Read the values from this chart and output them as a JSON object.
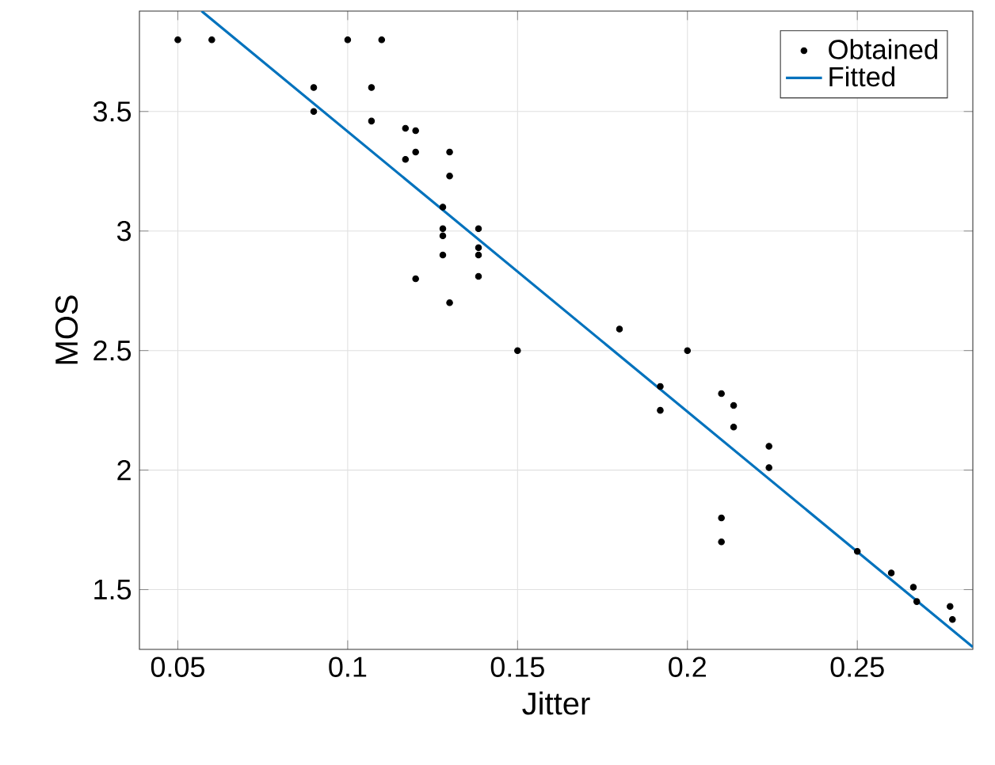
{
  "chart_data": {
    "type": "scatter",
    "xlabel": "Jitter",
    "ylabel": "MOS",
    "xlim": [
      0.0387,
      0.284
    ],
    "ylim": [
      1.25,
      3.92
    ],
    "xticks": [
      0.05,
      0.1,
      0.15,
      0.2,
      0.25
    ],
    "yticks": [
      1.5,
      2,
      2.5,
      3,
      3.5
    ],
    "grid": true,
    "legend": "top right",
    "series": [
      {
        "name": "Obtained",
        "type": "scatter",
        "marker": "circle",
        "color": "#000000",
        "x": [
          0.05,
          0.06,
          0.1,
          0.11,
          0.09,
          0.09,
          0.107,
          0.107,
          0.117,
          0.12,
          0.12,
          0.117,
          0.13,
          0.13,
          0.128,
          0.128,
          0.128,
          0.128,
          0.1385,
          0.1385,
          0.1385,
          0.1385,
          0.12,
          0.13,
          0.15,
          0.18,
          0.2,
          0.192,
          0.192,
          0.21,
          0.2136,
          0.2136,
          0.224,
          0.224,
          0.21,
          0.21,
          0.25,
          0.26,
          0.2665,
          0.2675,
          0.2773,
          0.278
        ],
        "values": [
          3.8,
          3.8,
          3.8,
          3.8,
          3.6,
          3.5,
          3.6,
          3.46,
          3.43,
          3.42,
          3.33,
          3.3,
          3.33,
          3.23,
          3.1,
          3.01,
          2.98,
          2.9,
          3.01,
          2.93,
          2.9,
          2.81,
          2.8,
          2.7,
          2.5,
          2.59,
          2.5,
          2.35,
          2.25,
          2.32,
          2.27,
          2.18,
          2.1,
          2.01,
          1.8,
          1.7,
          1.66,
          1.57,
          1.51,
          1.45,
          1.43,
          1.375
        ]
      },
      {
        "name": "Fitted",
        "type": "line",
        "line_style": "solid",
        "color": "#0072bd",
        "x": [
          0.057,
          0.284
        ],
        "values": [
          3.92,
          1.26
        ]
      }
    ]
  }
}
